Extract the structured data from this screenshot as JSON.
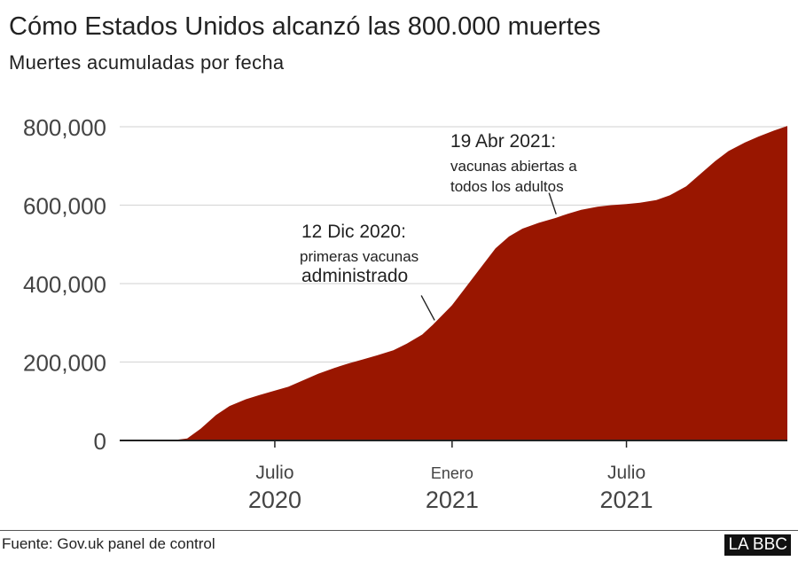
{
  "header": {
    "title": "Cómo Estados Unidos alcanzó las 800.000 muertes",
    "subtitle": "Muertes acumuladas por fecha"
  },
  "footer": {
    "source": "Fuente: Gov.uk panel de control",
    "logo": "LA BBC"
  },
  "colors": {
    "area": "#991600",
    "grid": "#d9d9d9",
    "axis": "#222222"
  },
  "chart_data": {
    "type": "area",
    "title": "Cómo Estados Unidos alcanzó las 800.000 muertes",
    "subtitle": "Muertes acumuladas por fecha",
    "xlabel": "",
    "ylabel": "",
    "ylim": [
      0,
      800000
    ],
    "xlim": [
      "2020-01-22",
      "2021-12-15"
    ],
    "yticks": [
      {
        "value": 0,
        "label": "0"
      },
      {
        "value": 200000,
        "label": "200,000"
      },
      {
        "value": 400000,
        "label": "400,000"
      },
      {
        "value": 600000,
        "label": "600,000"
      },
      {
        "value": 800000,
        "label": "800,000"
      }
    ],
    "xticks": [
      {
        "date": "2020-07-01",
        "label1": "Julio",
        "label2": "2020"
      },
      {
        "date": "2021-01-01",
        "label1": "Enero",
        "label2": "2021"
      },
      {
        "date": "2021-07-01",
        "label1": "Julio",
        "label2": "2021"
      }
    ],
    "grid": true,
    "series": [
      {
        "points": [
          [
            "2020-01-22",
            0
          ],
          [
            "2020-03-01",
            0
          ],
          [
            "2020-03-15",
            100
          ],
          [
            "2020-04-01",
            5000
          ],
          [
            "2020-04-15",
            30000
          ],
          [
            "2020-05-01",
            65000
          ],
          [
            "2020-05-15",
            88000
          ],
          [
            "2020-06-01",
            105000
          ],
          [
            "2020-06-15",
            116000
          ],
          [
            "2020-07-01",
            127000
          ],
          [
            "2020-07-15",
            137000
          ],
          [
            "2020-08-01",
            155000
          ],
          [
            "2020-08-15",
            170000
          ],
          [
            "2020-09-01",
            185000
          ],
          [
            "2020-09-15",
            196000
          ],
          [
            "2020-10-01",
            207000
          ],
          [
            "2020-10-15",
            217000
          ],
          [
            "2020-11-01",
            230000
          ],
          [
            "2020-11-15",
            247000
          ],
          [
            "2020-12-01",
            270000
          ],
          [
            "2020-12-12",
            295000
          ],
          [
            "2021-01-01",
            345000
          ],
          [
            "2021-01-15",
            390000
          ],
          [
            "2021-02-01",
            445000
          ],
          [
            "2021-02-15",
            490000
          ],
          [
            "2021-03-01",
            520000
          ],
          [
            "2021-03-15",
            540000
          ],
          [
            "2021-04-01",
            555000
          ],
          [
            "2021-04-19",
            568000
          ],
          [
            "2021-05-01",
            578000
          ],
          [
            "2021-05-15",
            588000
          ],
          [
            "2021-06-01",
            596000
          ],
          [
            "2021-06-15",
            600000
          ],
          [
            "2021-07-01",
            603000
          ],
          [
            "2021-07-15",
            606000
          ],
          [
            "2021-08-01",
            613000
          ],
          [
            "2021-08-15",
            625000
          ],
          [
            "2021-09-01",
            648000
          ],
          [
            "2021-09-15",
            678000
          ],
          [
            "2021-10-01",
            712000
          ],
          [
            "2021-10-15",
            738000
          ],
          [
            "2021-11-01",
            760000
          ],
          [
            "2021-11-15",
            775000
          ],
          [
            "2021-12-01",
            790000
          ],
          [
            "2021-12-15",
            802000
          ]
        ]
      }
    ],
    "annotations": [
      {
        "date": "2020-12-12",
        "value": 295000,
        "label1": "12 Dic 2020:",
        "label2": "primeras vacunas",
        "label3": "administrado"
      },
      {
        "date": "2021-04-19",
        "value": 568000,
        "label1": "19 Abr 2021:",
        "label2": "vacunas abiertas a",
        "label3": "todos los adultos"
      }
    ]
  }
}
